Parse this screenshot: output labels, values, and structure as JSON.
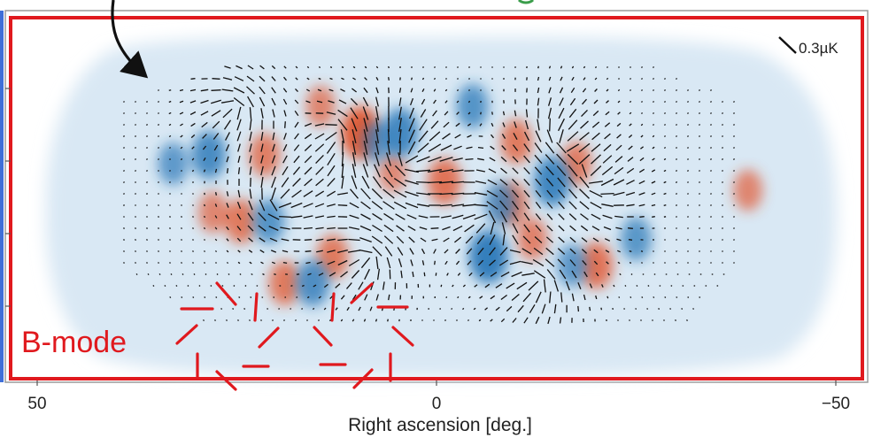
{
  "chart_data": {
    "type": "scatter",
    "panel_label": "B-mode",
    "xlabel": "Right ascension [deg.]",
    "ylabel": "",
    "x_ticks": [
      50,
      0,
      -50
    ],
    "x_tick_labels": [
      "50",
      "0",
      "−50"
    ],
    "xlim": [
      55,
      -55
    ],
    "scale_bar_label": "0.3µK",
    "grid": false,
    "colors": {
      "frame": "#e0191e",
      "positive": "#e2562f",
      "negative": "#2a78b8",
      "background_field": "#dbe9f4",
      "vector": "#111111",
      "arrow": "#111111",
      "left_edge": "#3f6fd8"
    },
    "hot_spots": [
      {
        "ra": 9.5,
        "amp": 1.0
      },
      {
        "ra": 13.0,
        "amp": 0.6
      },
      {
        "ra": -1.0,
        "amp": 0.7
      },
      {
        "ra": 19.0,
        "amp": 0.6
      },
      {
        "ra": 21.5,
        "amp": 0.55
      },
      {
        "ra": 24.5,
        "amp": 0.6
      },
      {
        "ra": 14.5,
        "amp": 0.45
      },
      {
        "ra": -9.5,
        "amp": 0.55
      },
      {
        "ra": -12.0,
        "amp": 0.5
      },
      {
        "ra": -17.5,
        "amp": 0.55
      },
      {
        "ra": -10.0,
        "amp": 0.6
      },
      {
        "ra": -20.0,
        "amp": 0.7
      },
      {
        "ra": -39.0,
        "amp": 0.45
      },
      {
        "ra": 28.0,
        "amp": 0.45
      },
      {
        "ra": 5.5,
        "amp": 0.4
      }
    ],
    "cold_spots": [
      {
        "ra": 4.5,
        "amp": 0.8
      },
      {
        "ra": -6.5,
        "amp": 1.0
      },
      {
        "ra": -14.5,
        "amp": 0.85
      },
      {
        "ra": 15.5,
        "amp": 0.7
      },
      {
        "ra": 28.5,
        "amp": 0.75
      },
      {
        "ra": 21.0,
        "amp": 0.6
      },
      {
        "ra": -4.5,
        "amp": 0.6
      },
      {
        "ra": -8.0,
        "amp": 0.55
      },
      {
        "ra": -25.0,
        "amp": 0.55
      },
      {
        "ra": 33.0,
        "amp": 0.5
      },
      {
        "ra": 7.5,
        "amp": 0.45
      },
      {
        "ra": -17.0,
        "amp": 0.5
      }
    ],
    "vortices": [
      {
        "ra": 8.5,
        "s": 1
      },
      {
        "ra": 5.5,
        "s": -1
      },
      {
        "ra": 20.0,
        "s": -1
      },
      {
        "ra": 10.5,
        "s": 1
      },
      {
        "ra": -6.0,
        "s": 1
      },
      {
        "ra": -15.0,
        "s": -1
      },
      {
        "ra": -13.0,
        "s": 1
      },
      {
        "ra": 25.0,
        "s": 1
      },
      {
        "ra": 3.0,
        "s": -1
      },
      {
        "ra": -20.5,
        "s": -1
      }
    ]
  }
}
